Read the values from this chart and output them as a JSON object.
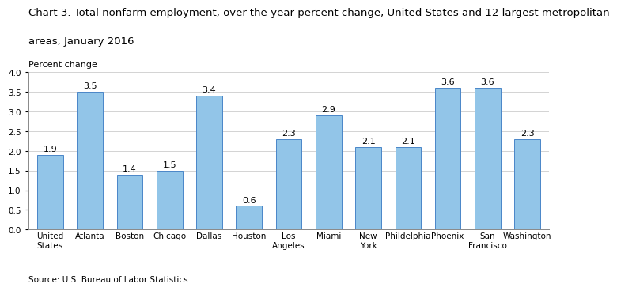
{
  "title_line1": "Chart 3. Total nonfarm employment, over-the-year percent change, United States and 12 largest metropolitan",
  "title_line2": "areas, January 2016",
  "ylabel": "Percent change",
  "source": "Source: U.S. Bureau of Labor Statistics.",
  "categories": [
    "United\nStates",
    "Atlanta",
    "Boston",
    "Chicago",
    "Dallas",
    "Houston",
    "Los\nAngeles",
    "Miami",
    "New\nYork",
    "Phildelphia",
    "Phoenix",
    "San\nFrancisco",
    "Washington"
  ],
  "values": [
    1.9,
    3.5,
    1.4,
    1.5,
    3.4,
    0.6,
    2.3,
    2.9,
    2.1,
    2.1,
    3.6,
    3.6,
    2.3
  ],
  "bar_color": "#92C5E8",
  "bar_edge_color": "#4A86C8",
  "ylim": [
    0,
    4.0
  ],
  "yticks": [
    0.0,
    0.5,
    1.0,
    1.5,
    2.0,
    2.5,
    3.0,
    3.5,
    4.0
  ],
  "title_fontsize": 9.5,
  "ylabel_fontsize": 8,
  "tick_fontsize": 7.5,
  "label_fontsize": 8,
  "source_fontsize": 7.5,
  "background_color": "#ffffff",
  "grid_color": "#cccccc"
}
